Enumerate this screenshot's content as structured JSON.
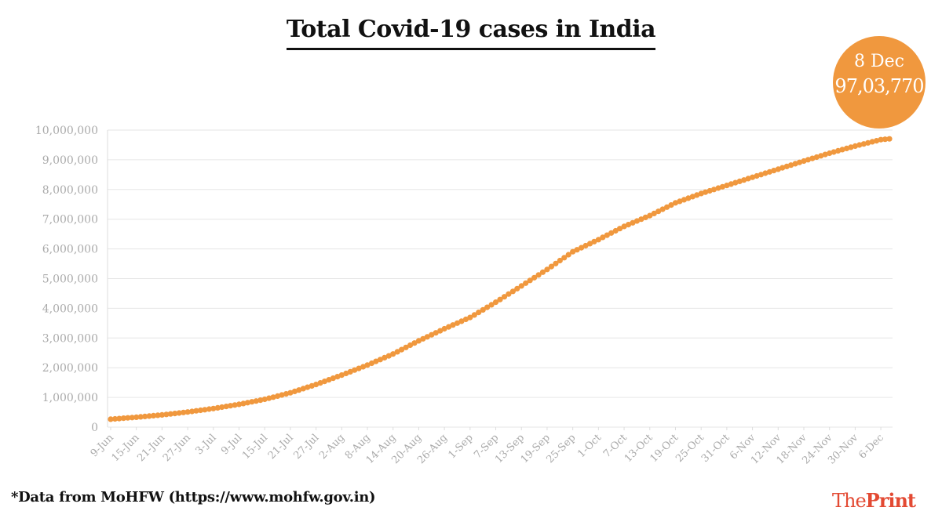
{
  "title": "Total Covid-19 cases in India",
  "callout": {
    "date": "8 Dec",
    "value": "97,03,770"
  },
  "footnote": "*Data from MoHFW (https://www.mohfw.gov.in)",
  "brand": {
    "part1": "The",
    "part2": "Print"
  },
  "colors": {
    "series": "#f0983e",
    "grid": "#e6e6e6",
    "tick": "#aaaaaa",
    "brand": "#e34a33"
  },
  "chart_data": {
    "type": "line",
    "title": "Total Covid-19 cases in India",
    "xlabel": "",
    "ylabel": "",
    "ylim": [
      0,
      10000000
    ],
    "yticks": [
      0,
      1000000,
      2000000,
      3000000,
      4000000,
      5000000,
      6000000,
      7000000,
      8000000,
      9000000,
      10000000
    ],
    "ytick_labels": [
      "0",
      "1,000,000",
      "2,000,000",
      "3,000,000",
      "4,000,000",
      "5,000,000",
      "6,000,000",
      "7,000,000",
      "8,000,000",
      "9,000,000",
      "10,000,000"
    ],
    "xtick_labels": [
      "9-Jun",
      "15-Jun",
      "21-Jun",
      "27-Jun",
      "3-Jul",
      "9-Jul",
      "15-Jul",
      "21-Jul",
      "27-Jul",
      "2-Aug",
      "8-Aug",
      "14-Aug",
      "20-Aug",
      "26-Aug",
      "1-Sep",
      "7-Sep",
      "13-Sep",
      "19-Sep",
      "25-Sep",
      "1-Oct",
      "7-Oct",
      "13-Oct",
      "19-Oct",
      "25-Oct",
      "31-Oct",
      "6-Nov",
      "12-Nov",
      "18-Nov",
      "24-Nov",
      "30-Nov",
      "6-Dec"
    ],
    "grid": true,
    "marker": "dot",
    "series": [
      {
        "x": [
          "9-Jun",
          "15-Jun",
          "21-Jun",
          "27-Jun",
          "3-Jul",
          "9-Jul",
          "15-Jul",
          "21-Jul",
          "27-Jul",
          "2-Aug",
          "8-Aug",
          "14-Aug",
          "20-Aug",
          "26-Aug",
          "1-Sep",
          "7-Sep",
          "13-Sep",
          "19-Sep",
          "25-Sep",
          "1-Oct",
          "7-Oct",
          "13-Oct",
          "19-Oct",
          "25-Oct",
          "31-Oct",
          "6-Nov",
          "12-Nov",
          "18-Nov",
          "24-Nov",
          "30-Nov",
          "6-Dec",
          "8-Dec"
        ],
        "values": [
          266598,
          332424,
          410461,
          508953,
          625544,
          767296,
          936181,
          1155191,
          1435453,
          1750723,
          2088611,
          2461190,
          2905823,
          3310234,
          3691166,
          4204613,
          4754356,
          5308014,
          5903932,
          6312584,
          6757131,
          7120538,
          7550273,
          7864811,
          8137119,
          8411724,
          8683916,
          8958483,
          9222216,
          9462809,
          9677203,
          9703770
        ]
      }
    ]
  }
}
